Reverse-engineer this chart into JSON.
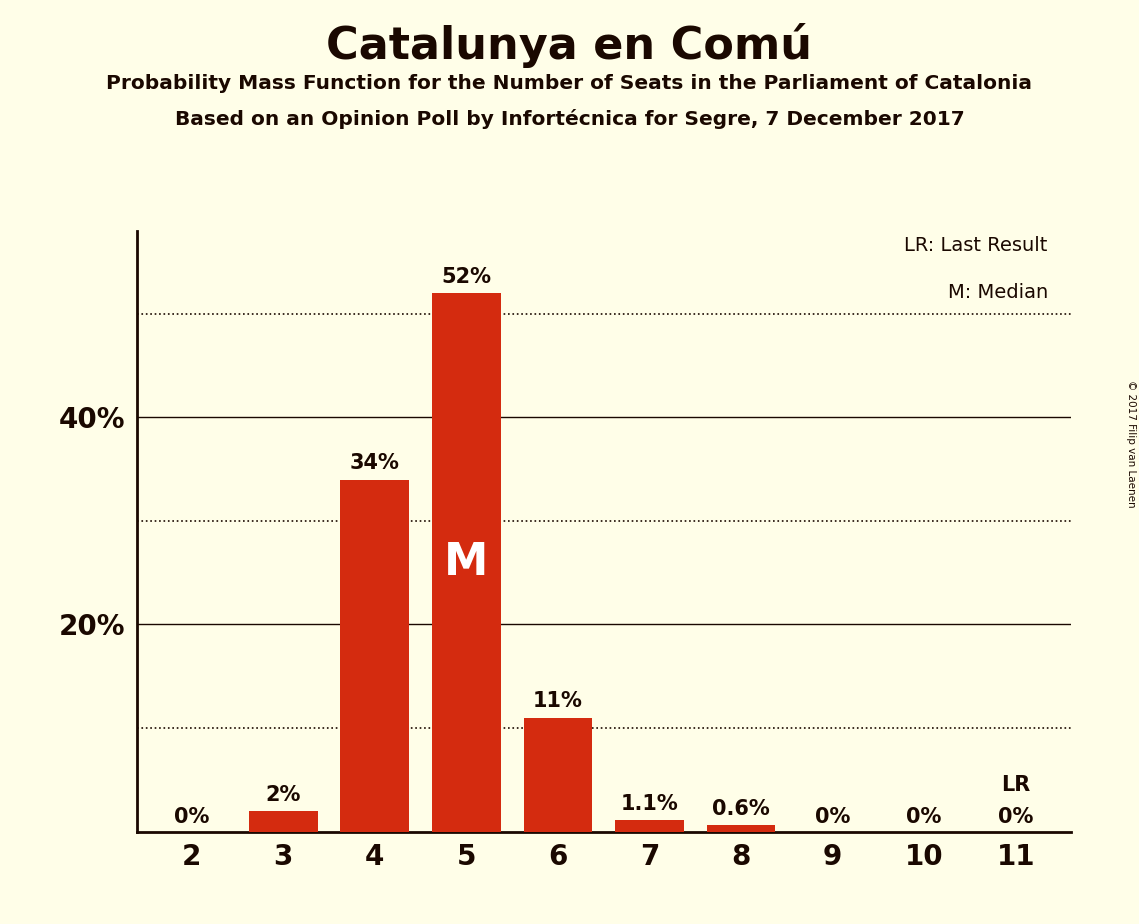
{
  "title": "Catalunya en Comú",
  "subtitle1": "Probability Mass Function for the Number of Seats in the Parliament of Catalonia",
  "subtitle2": "Based on an Opinion Poll by Infortécnica for Segre, 7 December 2017",
  "copyright": "© 2017 Filip van Laenen",
  "categories": [
    2,
    3,
    4,
    5,
    6,
    7,
    8,
    9,
    10,
    11
  ],
  "values": [
    0.0,
    2.0,
    34.0,
    52.0,
    11.0,
    1.1,
    0.6,
    0.0,
    0.0,
    0.0
  ],
  "bar_labels": [
    "0%",
    "2%",
    "34%",
    "52%",
    "11%",
    "1.1%",
    "0.6%",
    "0%",
    "0%",
    "0%"
  ],
  "bar_color": "#d42b0f",
  "background_color": "#fffee8",
  "text_color": "#1a0800",
  "median_seat": 5,
  "lr_seat": 11,
  "ylim_max": 58,
  "solid_lines": [
    20,
    40
  ],
  "dotted_lines": [
    10,
    30,
    50
  ],
  "ytick_positions": [
    20,
    40
  ],
  "ytick_labels": [
    "20%",
    "40%"
  ],
  "median_label": "M",
  "lr_label": "LR",
  "legend_lr": "LR: Last Result",
  "legend_m": "M: Median"
}
